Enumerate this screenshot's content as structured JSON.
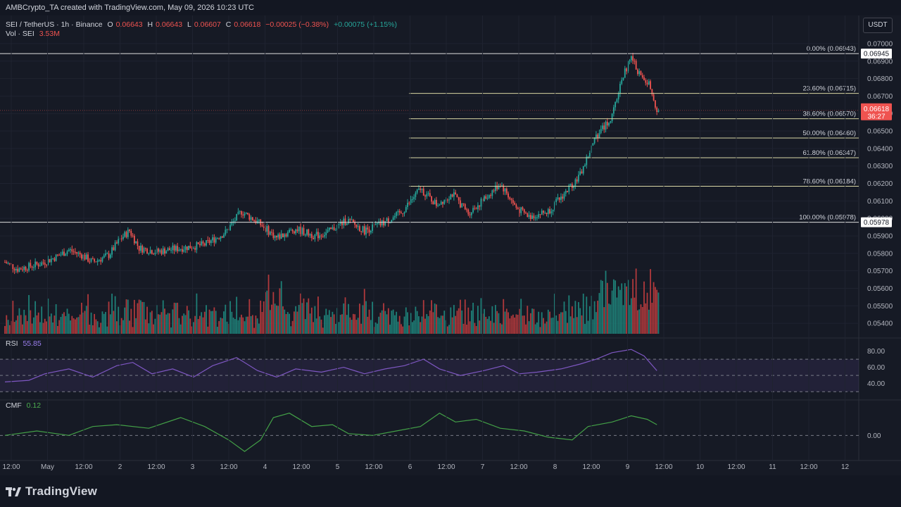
{
  "header": {
    "attribution": "AMBCrypto_TA created with TradingView.com, May 09, 2026 10:23 UTC"
  },
  "legend": {
    "symbol": "SEI / TetherUS · 1h · Binance",
    "open_label": "O",
    "open": "0.06643",
    "high_label": "H",
    "high": "0.06643",
    "low_label": "L",
    "low": "0.06607",
    "close_label": "C",
    "close": "0.06618",
    "change": "−0.00025 (−0.38%)",
    "change2": "+0.00075 (+1.15%)",
    "vol_label": "Vol · SEI",
    "vol_value": "3.53M",
    "rsi_label": "RSI",
    "rsi_value": "55.85",
    "cmf_label": "CMF",
    "cmf_value": "0.12"
  },
  "currency_button": "USDT",
  "brand": "TradingView",
  "colors": {
    "up": "#26a69a",
    "down": "#ef5350",
    "volume_up": "#1e7f77",
    "volume_down": "#b0393c",
    "fib_line": "#d8d6a5",
    "rsi_line": "#7e57c2",
    "cmf_line": "#43a047",
    "background": "#161a25"
  },
  "chart_data": {
    "type": "candlestick",
    "timeframe": "1h",
    "price_axis": {
      "range": [
        0.0534,
        0.0704
      ],
      "ticks": [
        "0.07000",
        "0.06900",
        "0.06800",
        "0.06700",
        "0.06600",
        "0.06500",
        "0.06400",
        "0.06300",
        "0.06200",
        "0.06100",
        "0.06000",
        "0.05900",
        "0.05800",
        "0.05700",
        "0.05600",
        "0.05500",
        "0.05400"
      ],
      "current_price": "0.06618",
      "countdown": "36:27"
    },
    "x_axis": {
      "ticks": [
        "12:00",
        "May",
        "12:00",
        "2",
        "12:00",
        "3",
        "12:00",
        "4",
        "12:00",
        "5",
        "12:00",
        "6",
        "12:00",
        "7",
        "12:00",
        "8",
        "12:00",
        "9",
        "12:00",
        "10",
        "12:00",
        "11",
        "12:00",
        "12"
      ]
    },
    "fibonacci": [
      {
        "label": "0.00%",
        "value": "0.06943",
        "price": 0.06943,
        "badge": "0.06945"
      },
      {
        "label": "23.60%",
        "value": "0.06715",
        "price": 0.06715
      },
      {
        "label": "38.60%",
        "value": "0.06570",
        "price": 0.0657
      },
      {
        "label": "50.00%",
        "value": "0.06460",
        "price": 0.0646
      },
      {
        "label": "61.80%",
        "value": "0.06347",
        "price": 0.06347
      },
      {
        "label": "78.60%",
        "value": "0.06184",
        "price": 0.06184
      },
      {
        "label": "100.00%",
        "value": "0.05978",
        "price": 0.05978,
        "badge": "0.05978"
      }
    ],
    "price_path": [
      [
        0,
        0.0575
      ],
      [
        8,
        0.0571
      ],
      [
        22,
        0.0574
      ],
      [
        32,
        0.0578
      ],
      [
        40,
        0.0582
      ],
      [
        48,
        0.0579
      ],
      [
        55,
        0.0575
      ],
      [
        65,
        0.0579
      ],
      [
        72,
        0.0588
      ],
      [
        78,
        0.0593
      ],
      [
        84,
        0.0583
      ],
      [
        95,
        0.0581
      ],
      [
        110,
        0.0583
      ],
      [
        125,
        0.0585
      ],
      [
        138,
        0.0592
      ],
      [
        148,
        0.0604
      ],
      [
        158,
        0.0598
      ],
      [
        170,
        0.0589
      ],
      [
        182,
        0.0594
      ],
      [
        194,
        0.059
      ],
      [
        202,
        0.0592
      ],
      [
        214,
        0.0599
      ],
      [
        225,
        0.0593
      ],
      [
        236,
        0.0597
      ],
      [
        248,
        0.0603
      ],
      [
        260,
        0.0617
      ],
      [
        270,
        0.0608
      ],
      [
        280,
        0.0614
      ],
      [
        290,
        0.0603
      ],
      [
        300,
        0.0611
      ],
      [
        310,
        0.062
      ],
      [
        320,
        0.0606
      ],
      [
        328,
        0.0601
      ],
      [
        340,
        0.0604
      ],
      [
        350,
        0.0614
      ],
      [
        360,
        0.0625
      ],
      [
        370,
        0.0647
      ],
      [
        380,
        0.0658
      ],
      [
        386,
        0.068
      ],
      [
        392,
        0.0692
      ],
      [
        398,
        0.0681
      ],
      [
        404,
        0.0676
      ],
      [
        408,
        0.06618
      ]
    ],
    "volume": {
      "range": [
        0,
        4.0
      ]
    },
    "rsi": {
      "range": [
        25,
        90
      ],
      "ticks": [
        "80.00",
        "60.00",
        "40.00"
      ],
      "band": [
        30,
        70
      ],
      "mid": 50,
      "path": [
        [
          0,
          42
        ],
        [
          15,
          44
        ],
        [
          25,
          52
        ],
        [
          40,
          58
        ],
        [
          55,
          48
        ],
        [
          70,
          62
        ],
        [
          80,
          66
        ],
        [
          92,
          52
        ],
        [
          105,
          58
        ],
        [
          118,
          48
        ],
        [
          130,
          62
        ],
        [
          145,
          72
        ],
        [
          158,
          56
        ],
        [
          170,
          48
        ],
        [
          182,
          58
        ],
        [
          198,
          54
        ],
        [
          212,
          60
        ],
        [
          225,
          52
        ],
        [
          238,
          58
        ],
        [
          250,
          62
        ],
        [
          262,
          70
        ],
        [
          272,
          58
        ],
        [
          285,
          50
        ],
        [
          300,
          56
        ],
        [
          312,
          62
        ],
        [
          322,
          52
        ],
        [
          333,
          54
        ],
        [
          348,
          58
        ],
        [
          360,
          64
        ],
        [
          370,
          70
        ],
        [
          380,
          78
        ],
        [
          392,
          82
        ],
        [
          400,
          74
        ],
        [
          408,
          55.85
        ]
      ]
    },
    "cmf": {
      "range": [
        -0.25,
        0.35
      ],
      "ticks": [
        "0.00"
      ],
      "zero": 0,
      "path": [
        [
          0,
          0.0
        ],
        [
          20,
          0.05
        ],
        [
          40,
          0.0
        ],
        [
          55,
          0.1
        ],
        [
          70,
          0.12
        ],
        [
          90,
          0.08
        ],
        [
          110,
          0.2
        ],
        [
          125,
          0.1
        ],
        [
          140,
          -0.05
        ],
        [
          150,
          -0.18
        ],
        [
          160,
          -0.05
        ],
        [
          168,
          0.2
        ],
        [
          178,
          0.25
        ],
        [
          192,
          0.1
        ],
        [
          205,
          0.12
        ],
        [
          215,
          0.02
        ],
        [
          230,
          0.0
        ],
        [
          245,
          0.05
        ],
        [
          260,
          0.1
        ],
        [
          272,
          0.25
        ],
        [
          282,
          0.15
        ],
        [
          295,
          0.18
        ],
        [
          310,
          0.08
        ],
        [
          325,
          0.05
        ],
        [
          340,
          -0.02
        ],
        [
          355,
          -0.05
        ],
        [
          365,
          0.1
        ],
        [
          380,
          0.15
        ],
        [
          392,
          0.22
        ],
        [
          402,
          0.18
        ],
        [
          408,
          0.12
        ]
      ]
    }
  }
}
